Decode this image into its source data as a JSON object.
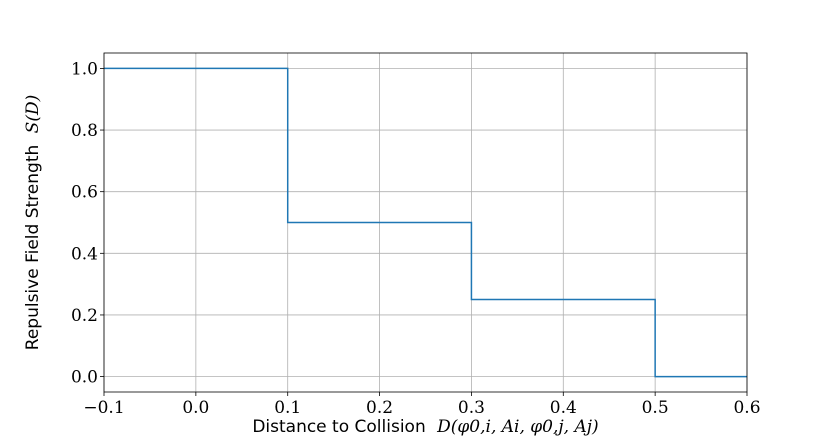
{
  "chart_data": {
    "type": "line",
    "step": "post",
    "title": "",
    "xlabel": "Distance to Collision",
    "xlabel_math": "D(φ0,i, Ai, φ0,j, Aj)",
    "ylabel": "Repulsive Field Strength",
    "ylabel_math": "S(D)",
    "xlim": [
      -0.1,
      0.6
    ],
    "ylim": [
      -0.05,
      1.05
    ],
    "xticks": [
      -0.1,
      0.0,
      0.1,
      0.2,
      0.3,
      0.4,
      0.5,
      0.6
    ],
    "xtick_labels": [
      "−0.1",
      "0.0",
      "0.1",
      "0.2",
      "0.3",
      "0.4",
      "0.5",
      "0.6"
    ],
    "yticks": [
      0.0,
      0.2,
      0.4,
      0.6,
      0.8,
      1.0
    ],
    "ytick_labels": [
      "0.0",
      "0.2",
      "0.4",
      "0.6",
      "0.8",
      "1.0"
    ],
    "grid": true,
    "series": [
      {
        "color": "#1f77b4",
        "x": [
          -0.1,
          0.1,
          0.1,
          0.3,
          0.3,
          0.5,
          0.5,
          0.6
        ],
        "y": [
          1.0,
          1.0,
          0.5,
          0.5,
          0.25,
          0.25,
          0.0,
          0.0
        ]
      }
    ]
  }
}
